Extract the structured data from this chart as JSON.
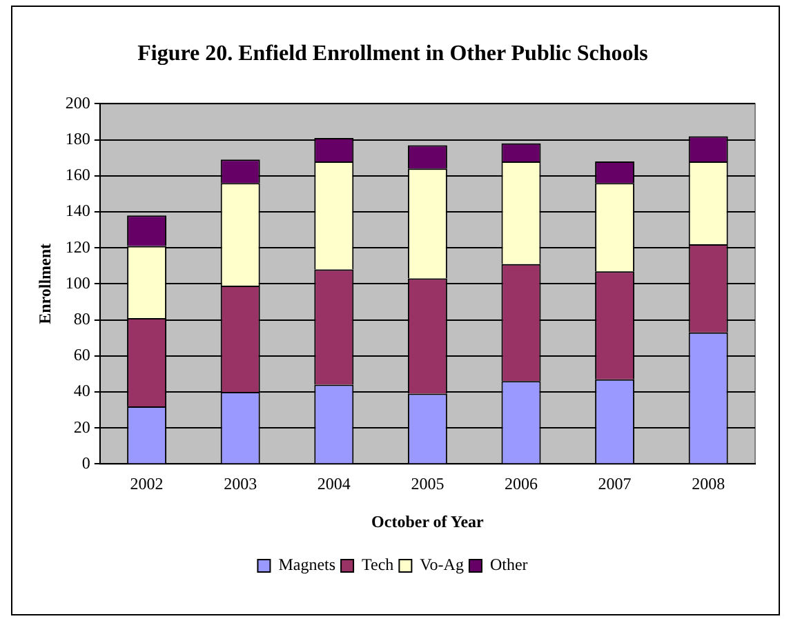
{
  "chart_data": {
    "type": "bar",
    "title": "Figure 20. Enfield Enrollment in Other Public Schools",
    "xlabel": "October of Year",
    "ylabel": "Enrollment",
    "categories": [
      "2002",
      "2003",
      "2004",
      "2005",
      "2006",
      "2007",
      "2008"
    ],
    "series": [
      {
        "name": "Magnets",
        "color": "#9999ff",
        "values": [
          32,
          40,
          44,
          39,
          46,
          47,
          73
        ]
      },
      {
        "name": "Tech",
        "color": "#993366",
        "values": [
          49,
          59,
          64,
          64,
          65,
          60,
          49
        ]
      },
      {
        "name": "Vo-Ag",
        "color": "#ffffcc",
        "values": [
          40,
          57,
          60,
          61,
          57,
          49,
          46
        ]
      },
      {
        "name": "Other",
        "color": "#660066",
        "values": [
          17,
          13,
          13,
          13,
          10,
          12,
          14
        ]
      }
    ],
    "stacked": true,
    "ylim": [
      0,
      200
    ],
    "yticks": [
      0,
      20,
      40,
      60,
      80,
      100,
      120,
      140,
      160,
      180,
      200
    ],
    "grid": "y",
    "legend": "bottom"
  }
}
